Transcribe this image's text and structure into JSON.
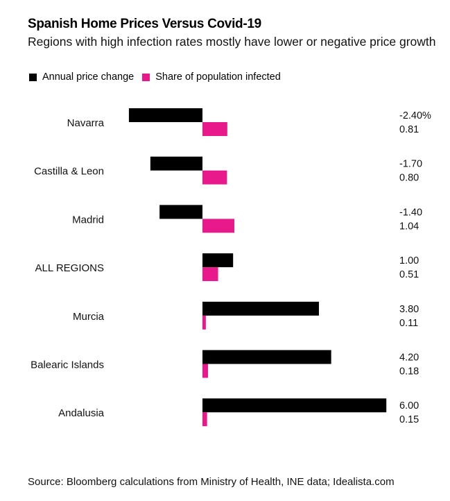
{
  "chart_data": {
    "type": "bar",
    "orientation": "horizontal",
    "title": "Spanish Home Prices Versus Covid-19",
    "subtitle": "Regions with high infection rates mostly have lower or negative price growth",
    "categories": [
      "Navarra",
      "Castilla & Leon",
      "Madrid",
      "ALL REGIONS",
      "Murcia",
      "Balearic Islands",
      "Andalusia"
    ],
    "series": [
      {
        "name": "Annual price change",
        "color": "#000000",
        "values": [
          -2.4,
          -1.7,
          -1.4,
          1.0,
          3.8,
          4.2,
          6.0
        ],
        "labels": [
          "-2.40%",
          "-1.70",
          "-1.40",
          "1.00",
          "3.80",
          "4.20",
          "6.00"
        ]
      },
      {
        "name": "Share of population infected",
        "color": "#e8198b",
        "values": [
          0.81,
          0.8,
          1.04,
          0.51,
          0.11,
          0.18,
          0.15
        ],
        "labels": [
          "0.81",
          "0.80",
          "1.04",
          "0.51",
          "0.11",
          "0.18",
          "0.15"
        ]
      }
    ],
    "xlim": [
      -2.4,
      6.0
    ],
    "grid": false,
    "legend": "top-left",
    "source": "Source: Bloomberg calculations from Ministry of Health, INE data; Idealista.com"
  }
}
